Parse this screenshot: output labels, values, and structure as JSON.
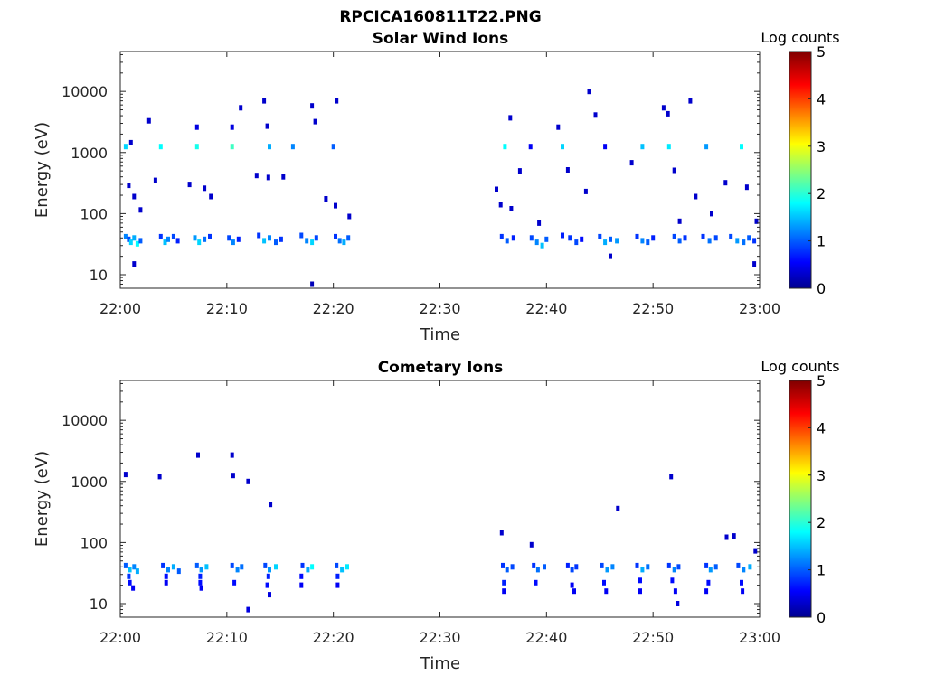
{
  "figure": {
    "title": "RPCICA160811T22.PNG"
  },
  "chart_data": [
    {
      "type": "heatmap",
      "title": "Solar Wind Ions",
      "xlabel": "Time",
      "ylabel": "Energy (eV)",
      "xticks": [
        "22:00",
        "22:10",
        "22:20",
        "22:30",
        "22:40",
        "22:50",
        "23:00"
      ],
      "xlim_minutes": [
        0,
        60
      ],
      "yscale": "log",
      "ylim": [
        6,
        45000
      ],
      "yticks": [
        10,
        100,
        1000,
        10000
      ],
      "ytick_labels": [
        "10",
        "100",
        "1000",
        "10000"
      ],
      "colorbar": {
        "label": "Log counts",
        "range": [
          0,
          5
        ],
        "ticks": [
          "0",
          "1",
          "2",
          "3",
          "4",
          "5"
        ],
        "colormap": "jet"
      },
      "cells": [
        {
          "t": 0.5,
          "e": 42,
          "v": 1.2
        },
        {
          "t": 0.8,
          "e": 38,
          "v": 0.9
        },
        {
          "t": 1.0,
          "e": 34,
          "v": 1.6
        },
        {
          "t": 1.3,
          "e": 40,
          "v": 1.4
        },
        {
          "t": 1.6,
          "e": 32,
          "v": 1.8
        },
        {
          "t": 1.9,
          "e": 36,
          "v": 1.0
        },
        {
          "t": 3.8,
          "e": 42,
          "v": 0.8
        },
        {
          "t": 4.2,
          "e": 34,
          "v": 1.5
        },
        {
          "t": 4.5,
          "e": 38,
          "v": 1.2
        },
        {
          "t": 5.0,
          "e": 42,
          "v": 0.9
        },
        {
          "t": 5.4,
          "e": 36,
          "v": 0.7
        },
        {
          "t": 7.0,
          "e": 40,
          "v": 1.3
        },
        {
          "t": 7.4,
          "e": 34,
          "v": 1.6
        },
        {
          "t": 7.9,
          "e": 38,
          "v": 1.1
        },
        {
          "t": 8.4,
          "e": 42,
          "v": 0.8
        },
        {
          "t": 10.2,
          "e": 40,
          "v": 0.9
        },
        {
          "t": 10.6,
          "e": 34,
          "v": 1.2
        },
        {
          "t": 11.1,
          "e": 38,
          "v": 0.7
        },
        {
          "t": 13.0,
          "e": 44,
          "v": 0.8
        },
        {
          "t": 13.5,
          "e": 36,
          "v": 1.5
        },
        {
          "t": 14.0,
          "e": 40,
          "v": 1.2
        },
        {
          "t": 14.6,
          "e": 34,
          "v": 1.0
        },
        {
          "t": 15.1,
          "e": 38,
          "v": 0.8
        },
        {
          "t": 17.0,
          "e": 44,
          "v": 0.9
        },
        {
          "t": 17.5,
          "e": 36,
          "v": 1.2
        },
        {
          "t": 18.0,
          "e": 34,
          "v": 1.6
        },
        {
          "t": 18.4,
          "e": 40,
          "v": 0.9
        },
        {
          "t": 20.2,
          "e": 42,
          "v": 0.8
        },
        {
          "t": 20.6,
          "e": 36,
          "v": 1.1
        },
        {
          "t": 21.0,
          "e": 34,
          "v": 1.4
        },
        {
          "t": 21.4,
          "e": 40,
          "v": 1.0
        },
        {
          "t": 35.8,
          "e": 42,
          "v": 0.8
        },
        {
          "t": 36.3,
          "e": 36,
          "v": 1.0
        },
        {
          "t": 36.9,
          "e": 40,
          "v": 0.7
        },
        {
          "t": 38.6,
          "e": 40,
          "v": 0.9
        },
        {
          "t": 39.1,
          "e": 34,
          "v": 1.2
        },
        {
          "t": 39.6,
          "e": 30,
          "v": 1.5
        },
        {
          "t": 40.0,
          "e": 38,
          "v": 1.0
        },
        {
          "t": 41.5,
          "e": 44,
          "v": 0.7
        },
        {
          "t": 42.2,
          "e": 40,
          "v": 0.8
        },
        {
          "t": 42.8,
          "e": 34,
          "v": 0.9
        },
        {
          "t": 43.3,
          "e": 38,
          "v": 0.6
        },
        {
          "t": 45.0,
          "e": 42,
          "v": 0.9
        },
        {
          "t": 45.5,
          "e": 34,
          "v": 1.4
        },
        {
          "t": 46.0,
          "e": 38,
          "v": 1.0
        },
        {
          "t": 46.6,
          "e": 36,
          "v": 1.3
        },
        {
          "t": 48.5,
          "e": 42,
          "v": 0.8
        },
        {
          "t": 49.0,
          "e": 36,
          "v": 1.2
        },
        {
          "t": 49.5,
          "e": 34,
          "v": 1.0
        },
        {
          "t": 50.0,
          "e": 40,
          "v": 0.7
        },
        {
          "t": 52.0,
          "e": 42,
          "v": 0.9
        },
        {
          "t": 52.5,
          "e": 36,
          "v": 1.0
        },
        {
          "t": 53.0,
          "e": 40,
          "v": 0.8
        },
        {
          "t": 54.7,
          "e": 42,
          "v": 0.8
        },
        {
          "t": 55.3,
          "e": 36,
          "v": 1.1
        },
        {
          "t": 55.9,
          "e": 40,
          "v": 0.9
        },
        {
          "t": 57.3,
          "e": 42,
          "v": 0.9
        },
        {
          "t": 57.9,
          "e": 36,
          "v": 1.3
        },
        {
          "t": 58.5,
          "e": 34,
          "v": 1.1
        },
        {
          "t": 59.0,
          "e": 40,
          "v": 1.0
        },
        {
          "t": 59.5,
          "e": 36,
          "v": 0.8
        },
        {
          "t": 1.3,
          "e": 15,
          "v": 0.3
        },
        {
          "t": 18.0,
          "e": 7,
          "v": 0.2
        },
        {
          "t": 46.0,
          "e": 20,
          "v": 0.3
        },
        {
          "t": 59.5,
          "e": 15,
          "v": 0.3
        },
        {
          "t": 0.5,
          "e": 1250,
          "v": 1.6
        },
        {
          "t": 1.0,
          "e": 1450,
          "v": 0.3
        },
        {
          "t": 3.8,
          "e": 1250,
          "v": 1.8
        },
        {
          "t": 7.2,
          "e": 1250,
          "v": 1.9
        },
        {
          "t": 10.5,
          "e": 1250,
          "v": 2.1
        },
        {
          "t": 14.0,
          "e": 1250,
          "v": 1.4
        },
        {
          "t": 16.2,
          "e": 1250,
          "v": 1.2
        },
        {
          "t": 20.0,
          "e": 1250,
          "v": 1.0
        },
        {
          "t": 36.1,
          "e": 1250,
          "v": 1.8
        },
        {
          "t": 38.5,
          "e": 1250,
          "v": 0.5
        },
        {
          "t": 41.5,
          "e": 1250,
          "v": 1.6
        },
        {
          "t": 45.5,
          "e": 1250,
          "v": 0.5
        },
        {
          "t": 49.0,
          "e": 1250,
          "v": 1.5
        },
        {
          "t": 51.5,
          "e": 1250,
          "v": 1.7
        },
        {
          "t": 55.0,
          "e": 1250,
          "v": 1.3
        },
        {
          "t": 58.3,
          "e": 1250,
          "v": 1.8
        },
        {
          "t": 7.2,
          "e": 2600,
          "v": 0.4
        },
        {
          "t": 10.5,
          "e": 2600,
          "v": 0.4
        },
        {
          "t": 13.8,
          "e": 2700,
          "v": 0.3
        },
        {
          "t": 18.3,
          "e": 3200,
          "v": 0.3
        },
        {
          "t": 44.0,
          "e": 10000,
          "v": 0.3
        },
        {
          "t": 51.0,
          "e": 5400,
          "v": 0.3
        },
        {
          "t": 53.5,
          "e": 7000,
          "v": 0.3
        },
        {
          "t": 11.3,
          "e": 5400,
          "v": 0.3
        },
        {
          "t": 13.5,
          "e": 7000,
          "v": 0.3
        },
        {
          "t": 18.0,
          "e": 5800,
          "v": 0.3
        },
        {
          "t": 20.3,
          "e": 7000,
          "v": 0.3
        },
        {
          "t": 2.7,
          "e": 3300,
          "v": 0.3
        },
        {
          "t": 36.6,
          "e": 3700,
          "v": 0.3
        },
        {
          "t": 41.1,
          "e": 2600,
          "v": 0.3
        },
        {
          "t": 44.6,
          "e": 4100,
          "v": 0.3
        },
        {
          "t": 51.4,
          "e": 4300,
          "v": 0.3
        },
        {
          "t": 0.8,
          "e": 290,
          "v": 0.3
        },
        {
          "t": 1.3,
          "e": 190,
          "v": 0.3
        },
        {
          "t": 1.9,
          "e": 115,
          "v": 0.3
        },
        {
          "t": 3.3,
          "e": 350,
          "v": 0.3
        },
        {
          "t": 6.5,
          "e": 300,
          "v": 0.3
        },
        {
          "t": 7.9,
          "e": 260,
          "v": 0.3
        },
        {
          "t": 8.5,
          "e": 190,
          "v": 0.3
        },
        {
          "t": 12.8,
          "e": 420,
          "v": 0.3
        },
        {
          "t": 13.9,
          "e": 390,
          "v": 0.3
        },
        {
          "t": 15.3,
          "e": 400,
          "v": 0.3
        },
        {
          "t": 19.3,
          "e": 175,
          "v": 0.3
        },
        {
          "t": 20.2,
          "e": 135,
          "v": 0.3
        },
        {
          "t": 21.5,
          "e": 90,
          "v": 0.3
        },
        {
          "t": 35.3,
          "e": 250,
          "v": 0.3
        },
        {
          "t": 35.7,
          "e": 140,
          "v": 0.3
        },
        {
          "t": 36.7,
          "e": 120,
          "v": 0.3
        },
        {
          "t": 37.5,
          "e": 500,
          "v": 0.3
        },
        {
          "t": 39.3,
          "e": 70,
          "v": 0.3
        },
        {
          "t": 42.0,
          "e": 520,
          "v": 0.3
        },
        {
          "t": 43.7,
          "e": 230,
          "v": 0.3
        },
        {
          "t": 48.0,
          "e": 680,
          "v": 0.3
        },
        {
          "t": 52.0,
          "e": 510,
          "v": 0.3
        },
        {
          "t": 52.5,
          "e": 75,
          "v": 0.3
        },
        {
          "t": 54.0,
          "e": 190,
          "v": 0.3
        },
        {
          "t": 55.5,
          "e": 100,
          "v": 0.3
        },
        {
          "t": 56.8,
          "e": 320,
          "v": 0.3
        },
        {
          "t": 58.8,
          "e": 270,
          "v": 0.3
        },
        {
          "t": 59.7,
          "e": 75,
          "v": 0.3
        }
      ]
    },
    {
      "type": "heatmap",
      "title": "Cometary Ions",
      "xlabel": "Time",
      "ylabel": "Energy (eV)",
      "xticks": [
        "22:00",
        "22:10",
        "22:20",
        "22:30",
        "22:40",
        "22:50",
        "23:00"
      ],
      "xlim_minutes": [
        0,
        60
      ],
      "yscale": "log",
      "ylim": [
        6,
        45000
      ],
      "yticks": [
        10,
        100,
        1000,
        10000
      ],
      "ytick_labels": [
        "10",
        "100",
        "1000",
        "10000"
      ],
      "colorbar": {
        "label": "Log counts",
        "range": [
          0,
          5
        ],
        "ticks": [
          "0",
          "1",
          "2",
          "3",
          "4",
          "5"
        ],
        "colormap": "jet"
      },
      "cells": [
        {
          "t": 0.5,
          "e": 42,
          "v": 1.0
        },
        {
          "t": 0.9,
          "e": 36,
          "v": 1.5
        },
        {
          "t": 1.3,
          "e": 40,
          "v": 1.2
        },
        {
          "t": 1.6,
          "e": 34,
          "v": 1.4
        },
        {
          "t": 0.9,
          "e": 22,
          "v": 0.6
        },
        {
          "t": 1.2,
          "e": 18,
          "v": 0.5
        },
        {
          "t": 0.8,
          "e": 28,
          "v": 0.8
        },
        {
          "t": 4.0,
          "e": 42,
          "v": 0.8
        },
        {
          "t": 4.5,
          "e": 36,
          "v": 1.2
        },
        {
          "t": 5.0,
          "e": 40,
          "v": 1.4
        },
        {
          "t": 5.5,
          "e": 34,
          "v": 1.0
        },
        {
          "t": 4.3,
          "e": 28,
          "v": 0.6
        },
        {
          "t": 4.3,
          "e": 22,
          "v": 0.5
        },
        {
          "t": 7.2,
          "e": 42,
          "v": 1.0
        },
        {
          "t": 7.6,
          "e": 36,
          "v": 1.3
        },
        {
          "t": 8.1,
          "e": 40,
          "v": 1.5
        },
        {
          "t": 7.5,
          "e": 28,
          "v": 0.7
        },
        {
          "t": 7.5,
          "e": 22,
          "v": 0.6
        },
        {
          "t": 7.6,
          "e": 18,
          "v": 0.5
        },
        {
          "t": 10.5,
          "e": 42,
          "v": 0.9
        },
        {
          "t": 11.0,
          "e": 36,
          "v": 1.2
        },
        {
          "t": 11.4,
          "e": 40,
          "v": 1.1
        },
        {
          "t": 10.7,
          "e": 22,
          "v": 0.6
        },
        {
          "t": 12.0,
          "e": 8,
          "v": 0.4
        },
        {
          "t": 13.6,
          "e": 42,
          "v": 0.9
        },
        {
          "t": 14.0,
          "e": 36,
          "v": 1.3
        },
        {
          "t": 14.6,
          "e": 40,
          "v": 1.6
        },
        {
          "t": 13.9,
          "e": 28,
          "v": 0.7
        },
        {
          "t": 13.8,
          "e": 20,
          "v": 0.6
        },
        {
          "t": 14.0,
          "e": 14,
          "v": 0.4
        },
        {
          "t": 17.1,
          "e": 42,
          "v": 0.8
        },
        {
          "t": 17.6,
          "e": 36,
          "v": 1.4
        },
        {
          "t": 18.0,
          "e": 40,
          "v": 1.8
        },
        {
          "t": 17.0,
          "e": 28,
          "v": 0.6
        },
        {
          "t": 17.0,
          "e": 20,
          "v": 0.5
        },
        {
          "t": 20.3,
          "e": 42,
          "v": 0.9
        },
        {
          "t": 20.8,
          "e": 36,
          "v": 1.5
        },
        {
          "t": 21.3,
          "e": 40,
          "v": 1.7
        },
        {
          "t": 20.4,
          "e": 28,
          "v": 0.7
        },
        {
          "t": 20.4,
          "e": 20,
          "v": 0.5
        },
        {
          "t": 35.9,
          "e": 42,
          "v": 0.8
        },
        {
          "t": 36.3,
          "e": 36,
          "v": 1.0
        },
        {
          "t": 36.8,
          "e": 40,
          "v": 0.9
        },
        {
          "t": 36.0,
          "e": 22,
          "v": 0.7
        },
        {
          "t": 36.0,
          "e": 16,
          "v": 0.5
        },
        {
          "t": 38.8,
          "e": 42,
          "v": 0.8
        },
        {
          "t": 39.2,
          "e": 36,
          "v": 1.1
        },
        {
          "t": 39.8,
          "e": 40,
          "v": 1.0
        },
        {
          "t": 39.0,
          "e": 22,
          "v": 0.6
        },
        {
          "t": 42.0,
          "e": 42,
          "v": 0.7
        },
        {
          "t": 42.4,
          "e": 36,
          "v": 0.9
        },
        {
          "t": 42.8,
          "e": 40,
          "v": 0.8
        },
        {
          "t": 42.4,
          "e": 20,
          "v": 0.5
        },
        {
          "t": 42.6,
          "e": 16,
          "v": 0.5
        },
        {
          "t": 45.2,
          "e": 42,
          "v": 0.9
        },
        {
          "t": 45.7,
          "e": 36,
          "v": 1.3
        },
        {
          "t": 46.2,
          "e": 40,
          "v": 1.2
        },
        {
          "t": 45.4,
          "e": 22,
          "v": 0.6
        },
        {
          "t": 45.6,
          "e": 16,
          "v": 0.5
        },
        {
          "t": 48.5,
          "e": 42,
          "v": 0.8
        },
        {
          "t": 49.0,
          "e": 36,
          "v": 1.4
        },
        {
          "t": 49.5,
          "e": 40,
          "v": 1.1
        },
        {
          "t": 48.8,
          "e": 24,
          "v": 0.6
        },
        {
          "t": 48.8,
          "e": 16,
          "v": 0.5
        },
        {
          "t": 51.5,
          "e": 42,
          "v": 0.8
        },
        {
          "t": 52.0,
          "e": 36,
          "v": 1.2
        },
        {
          "t": 52.4,
          "e": 40,
          "v": 0.9
        },
        {
          "t": 51.8,
          "e": 24,
          "v": 0.6
        },
        {
          "t": 52.1,
          "e": 16,
          "v": 0.5
        },
        {
          "t": 52.3,
          "e": 10,
          "v": 0.4
        },
        {
          "t": 55.0,
          "e": 42,
          "v": 0.8
        },
        {
          "t": 55.4,
          "e": 36,
          "v": 1.3
        },
        {
          "t": 55.9,
          "e": 40,
          "v": 1.0
        },
        {
          "t": 55.2,
          "e": 22,
          "v": 0.6
        },
        {
          "t": 55.0,
          "e": 16,
          "v": 0.5
        },
        {
          "t": 58.0,
          "e": 42,
          "v": 0.9
        },
        {
          "t": 58.5,
          "e": 36,
          "v": 1.2
        },
        {
          "t": 59.1,
          "e": 40,
          "v": 1.4
        },
        {
          "t": 58.3,
          "e": 22,
          "v": 0.6
        },
        {
          "t": 58.4,
          "e": 16,
          "v": 0.5
        },
        {
          "t": 0.5,
          "e": 1300,
          "v": 0.3
        },
        {
          "t": 3.7,
          "e": 1200,
          "v": 0.3
        },
        {
          "t": 7.3,
          "e": 2700,
          "v": 0.3
        },
        {
          "t": 10.5,
          "e": 2700,
          "v": 0.3
        },
        {
          "t": 10.6,
          "e": 1250,
          "v": 0.3
        },
        {
          "t": 12.0,
          "e": 1000,
          "v": 0.3
        },
        {
          "t": 14.1,
          "e": 420,
          "v": 0.3
        },
        {
          "t": 35.8,
          "e": 145,
          "v": 0.3
        },
        {
          "t": 38.6,
          "e": 92,
          "v": 0.3
        },
        {
          "t": 46.7,
          "e": 360,
          "v": 0.3
        },
        {
          "t": 51.7,
          "e": 1200,
          "v": 0.3
        },
        {
          "t": 56.9,
          "e": 122,
          "v": 0.3
        },
        {
          "t": 57.6,
          "e": 128,
          "v": 0.3
        },
        {
          "t": 59.6,
          "e": 73,
          "v": 0.3
        }
      ]
    }
  ]
}
